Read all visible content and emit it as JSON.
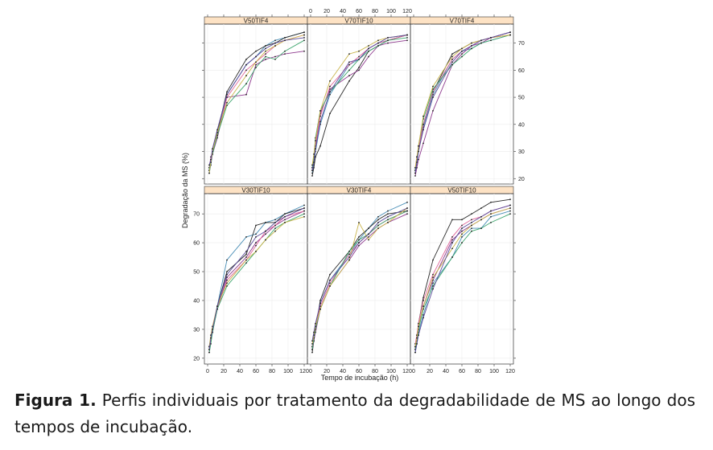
{
  "chart_data": {
    "type": "line",
    "xlabel": "Tempo de incubação (h)",
    "ylabel": "Degradação da MS (%)",
    "xlim": [
      0,
      120
    ],
    "ylim": [
      18,
      77
    ],
    "x_ticks": [
      0,
      20,
      40,
      60,
      80,
      100,
      120
    ],
    "y_ticks": [
      20,
      30,
      40,
      50,
      60,
      70
    ],
    "x": [
      2,
      4,
      6,
      12,
      24,
      48,
      60,
      72,
      84,
      96,
      120
    ],
    "panels": [
      {
        "title": "V50TIF4",
        "series": [
          {
            "color": "#4a8fb7",
            "values": [
              22,
              25,
              29,
              36,
              51,
              62,
              65,
              69,
              71,
              72,
              74
            ]
          },
          {
            "color": "#2a2a2a",
            "values": [
              24,
              27,
              30,
              37,
              52,
              64,
              67,
              69,
              70,
              72,
              74
            ]
          },
          {
            "color": "#8e3a8e",
            "values": [
              23,
              26,
              29,
              35,
              50,
              51,
              62,
              64,
              65,
              66,
              67
            ]
          },
          {
            "color": "#e0679a",
            "values": [
              24,
              28,
              30,
              36,
              50,
              60,
              63,
              66,
              69,
              71,
              73
            ]
          },
          {
            "color": "#3ea66e",
            "values": [
              23,
              27,
              29,
              36,
              47,
              55,
              61,
              65,
              64,
              67,
              71
            ]
          },
          {
            "color": "#c9b44a",
            "values": [
              22,
              26,
              30,
              37,
              48,
              58,
              63,
              67,
              69,
              71,
              73
            ]
          },
          {
            "color": "#5a4a9a",
            "values": [
              25,
              27,
              31,
              38,
              51,
              62,
              65,
              68,
              70,
              71,
              72
            ]
          }
        ]
      },
      {
        "title": "V70TIF10",
        "series": [
          {
            "color": "#4a8fb7",
            "values": [
              22,
              25,
              30,
              40,
              51,
              62,
              64,
              68,
              70,
              71,
              73
            ]
          },
          {
            "color": "#2a2a2a",
            "values": [
              21,
              24,
              28,
              32,
              44,
              56,
              61,
              67,
              69,
              71,
              73
            ]
          },
          {
            "color": "#8e3a8e",
            "values": [
              24,
              28,
              33,
              44,
              53,
              58,
              60,
              65,
              69,
              70,
              71
            ]
          },
          {
            "color": "#e0679a",
            "values": [
              23,
              27,
              32,
              43,
              54,
              62,
              65,
              68,
              70,
              71,
              73
            ]
          },
          {
            "color": "#3ea66e",
            "values": [
              24,
              28,
              35,
              45,
              52,
              60,
              64,
              67,
              69,
              71,
              72
            ]
          },
          {
            "color": "#c9b44a",
            "values": [
              25,
              29,
              34,
              45,
              56,
              66,
              67,
              69,
              71,
              72,
              73
            ]
          },
          {
            "color": "#5a4a9a",
            "values": [
              23,
              26,
              31,
              41,
              52,
              63,
              64,
              68,
              70,
              72,
              73
            ]
          }
        ]
      },
      {
        "title": "V70TIF4",
        "series": [
          {
            "color": "#4a8fb7",
            "values": [
              22,
              25,
              30,
              39,
              51,
              64,
              67,
              68,
              70,
              71,
              73
            ]
          },
          {
            "color": "#2a2a2a",
            "values": [
              23,
              27,
              31,
              40,
              52,
              66,
              68,
              70,
              71,
              72,
              74
            ]
          },
          {
            "color": "#8e3a8e",
            "values": [
              21,
              24,
              27,
              33,
              45,
              62,
              66,
              69,
              70,
              72,
              74
            ]
          },
          {
            "color": "#e0679a",
            "values": [
              24,
              28,
              31,
              40,
              52,
              64,
              67,
              69,
              71,
              72,
              73
            ]
          },
          {
            "color": "#3ea66e",
            "values": [
              23,
              27,
              32,
              42,
              53,
              62,
              65,
              68,
              70,
              71,
              73
            ]
          },
          {
            "color": "#c9b44a",
            "values": [
              24,
              28,
              32,
              43,
              54,
              65,
              68,
              70,
              71,
              72,
              73
            ]
          },
          {
            "color": "#5a4a9a",
            "values": [
              22,
              26,
              30,
              38,
              50,
              63,
              67,
              69,
              71,
              72,
              74
            ]
          }
        ]
      },
      {
        "title": "V30TIF10",
        "series": [
          {
            "color": "#4a8fb7",
            "values": [
              23,
              26,
              29,
              38,
              54,
              62,
              63,
              67,
              68,
              70,
              73
            ]
          },
          {
            "color": "#2a2a2a",
            "values": [
              24,
              27,
              30,
              38,
              50,
              56,
              66,
              67,
              67,
              70,
              72
            ]
          },
          {
            "color": "#8e3a8e",
            "values": [
              22,
              26,
              29,
              37,
              48,
              55,
              60,
              63,
              66,
              68,
              71
            ]
          },
          {
            "color": "#e0679a",
            "values": [
              23,
              27,
              30,
              37,
              47,
              54,
              59,
              64,
              66,
              69,
              71
            ]
          },
          {
            "color": "#3ea66e",
            "values": [
              22,
              25,
              29,
              37,
              45,
              53,
              57,
              61,
              65,
              67,
              70
            ]
          },
          {
            "color": "#c9b44a",
            "values": [
              24,
              28,
              31,
              38,
              46,
              54,
              57,
              61,
              64,
              67,
              69
            ]
          },
          {
            "color": "#5a4a9a",
            "values": [
              23,
              27,
              30,
              38,
              49,
              57,
              62,
              64,
              67,
              69,
              72
            ]
          }
        ]
      },
      {
        "title": "V30TIF4",
        "series": [
          {
            "color": "#4a8fb7",
            "values": [
              24,
              27,
              31,
              39,
              47,
              56,
              61,
              65,
              69,
              71,
              74
            ]
          },
          {
            "color": "#2a2a2a",
            "values": [
              22,
              26,
              30,
              40,
              49,
              57,
              62,
              65,
              68,
              70,
              71
            ]
          },
          {
            "color": "#8e3a8e",
            "values": [
              23,
              26,
              29,
              37,
              45,
              54,
              59,
              62,
              65,
              67,
              70
            ]
          },
          {
            "color": "#e0679a",
            "values": [
              24,
              28,
              31,
              38,
              46,
              56,
              60,
              63,
              66,
              68,
              71
            ]
          },
          {
            "color": "#3ea66e",
            "values": [
              23,
              27,
              30,
              37,
              45,
              57,
              61,
              63,
              66,
              68,
              71
            ]
          },
          {
            "color": "#c9b44a",
            "values": [
              25,
              28,
              31,
              37,
              45,
              54,
              67,
              61,
              65,
              67,
              72
            ]
          },
          {
            "color": "#5a4a9a",
            "values": [
              26,
              29,
              32,
              39,
              47,
              55,
              60,
              63,
              67,
              69,
              72
            ]
          }
        ]
      },
      {
        "title": "V50TIF10",
        "series": [
          {
            "color": "#4a8fb7",
            "values": [
              22,
              25,
              29,
              35,
              46,
              55,
              62,
              65,
              65,
              69,
              71
            ]
          },
          {
            "color": "#2a2a2a",
            "values": [
              23,
              27,
              32,
              41,
              54,
              68,
              68,
              70,
              72,
              74,
              75
            ]
          },
          {
            "color": "#8e3a8e",
            "values": [
              24,
              28,
              31,
              38,
              47,
              61,
              64,
              66,
              68,
              70,
              72
            ]
          },
          {
            "color": "#e0679a",
            "values": [
              25,
              28,
              32,
              40,
              49,
              62,
              66,
              68,
              69,
              71,
              73
            ]
          },
          {
            "color": "#3ea66e",
            "values": [
              23,
              26,
              30,
              37,
              45,
              55,
              60,
              64,
              65,
              67,
              70
            ]
          },
          {
            "color": "#c9b44a",
            "values": [
              24,
              27,
              31,
              38,
              48,
              58,
              63,
              66,
              68,
              70,
              72
            ]
          },
          {
            "color": "#5a4a9a",
            "values": [
              22,
              25,
              28,
              34,
              44,
              60,
              65,
              67,
              69,
              71,
              73
            ]
          }
        ]
      }
    ]
  },
  "caption": {
    "label": "Figura 1.",
    "text": "Perfis individuais por tratamento da degradabilidade de MS ao longo dos tempos de incubação."
  }
}
